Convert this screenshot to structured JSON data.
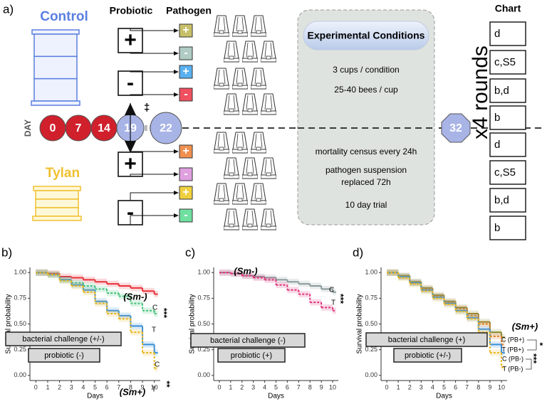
{
  "panel_a": {
    "label": "a)",
    "control": "Control",
    "tylan": "Tylan",
    "probiotic_header": "Probiotic",
    "pathogen_header": "Pathogen",
    "day_label": "DAY",
    "days": [
      "0",
      "7",
      "14",
      "19",
      "22",
      "32"
    ],
    "dagger": "‡",
    "probiotic_signs": [
      "+",
      "-",
      "+",
      "-"
    ],
    "pathogen_signs": [
      "+",
      "-",
      "+",
      "-",
      "+",
      "-",
      "+",
      "-"
    ],
    "conditions": {
      "title": "Experimental Conditions",
      "lines": [
        "3 cups / condition",
        "25-40 bees / cup",
        "mortality census every 24h",
        "pathogen suspension",
        "replaced 72h",
        "10 day trial"
      ]
    },
    "rounds": "x4 rounds",
    "chart_header": "Chart",
    "chart_cells": [
      "d",
      "c,S5",
      "b,d",
      "b",
      "d",
      "c,S5",
      "b,d",
      "b"
    ]
  },
  "chart_data": [
    {
      "type": "line",
      "panel": "b)",
      "xlabel": "Days",
      "ylabel": "Survival probability",
      "x": [
        0,
        1,
        2,
        3,
        4,
        5,
        6,
        7,
        8,
        9,
        10
      ],
      "xlim": [
        -0.5,
        10.5
      ],
      "xticks": [
        0,
        1,
        2,
        3,
        4,
        5,
        6,
        7,
        8,
        9,
        10
      ],
      "ylim": [
        -0.05,
        1.05
      ],
      "yticks": [
        {
          "value": 0,
          "label": "0.00"
        },
        {
          "value": 0.25,
          "label": "0.25"
        },
        {
          "value": 0.5,
          "label": "0.50"
        },
        {
          "value": 0.75,
          "label": "0.75"
        },
        {
          "value": 1,
          "label": "1.00"
        }
      ],
      "series": [
        {
          "name": "C",
          "color": "#e8303a",
          "dashed": false,
          "values": [
            1,
            0.99,
            0.96,
            0.95,
            0.93,
            0.91,
            0.89,
            0.87,
            0.85,
            0.82,
            0.79
          ]
        },
        {
          "name": "T",
          "color": "#45c07a",
          "dashed": true,
          "values": [
            1,
            0.98,
            0.93,
            0.9,
            0.87,
            0.84,
            0.8,
            0.77,
            0.7,
            0.63,
            0.6
          ]
        },
        {
          "name": "C",
          "color": "#3a8fd8",
          "dashed": false,
          "values": [
            1,
            0.98,
            0.93,
            0.88,
            0.83,
            0.72,
            0.63,
            0.58,
            0.48,
            0.3,
            0.22
          ]
        },
        {
          "name": "T",
          "color": "#e8b820",
          "dashed": true,
          "values": [
            1,
            0.98,
            0.92,
            0.87,
            0.81,
            0.7,
            0.6,
            0.55,
            0.42,
            0.22,
            0.07
          ]
        }
      ],
      "annotations": [
        "(Sm-)",
        "***",
        "(Sm+)",
        "**",
        "bacterial challenge (+/-)",
        "probiotic (-)"
      ]
    },
    {
      "type": "line",
      "panel": "c)",
      "xlabel": "Days",
      "ylabel": "Survival probability",
      "x": [
        0,
        1,
        2,
        3,
        4,
        5,
        6,
        7,
        8,
        9,
        10
      ],
      "xlim": [
        -0.5,
        10.5
      ],
      "xticks": [
        0,
        1,
        2,
        3,
        4,
        5,
        6,
        7,
        8,
        9,
        10
      ],
      "ylim": [
        -0.05,
        1.05
      ],
      "yticks": [
        {
          "value": 0,
          "label": "0.00"
        },
        {
          "value": 0.25,
          "label": "0.25"
        },
        {
          "value": 0.5,
          "label": "0.50"
        },
        {
          "value": 0.75,
          "label": "0.75"
        },
        {
          "value": 1,
          "label": "1.00"
        }
      ],
      "series": [
        {
          "name": "C",
          "color": "#8a9a9a",
          "dashed": false,
          "values": [
            1,
            0.99,
            0.97,
            0.96,
            0.95,
            0.93,
            0.91,
            0.89,
            0.87,
            0.84,
            0.81
          ]
        },
        {
          "name": "T",
          "color": "#e0307a",
          "dashed": true,
          "values": [
            1,
            0.99,
            0.97,
            0.95,
            0.93,
            0.88,
            0.83,
            0.79,
            0.71,
            0.66,
            0.63
          ]
        }
      ],
      "annotations": [
        "(Sm-)",
        "***",
        "bacterial challenge (-)",
        "probiotic (+)"
      ]
    },
    {
      "type": "line",
      "panel": "d)",
      "xlabel": "Days",
      "ylabel": "Survival probability",
      "x": [
        0,
        1,
        2,
        3,
        4,
        5,
        6,
        7,
        8,
        9,
        10
      ],
      "xlim": [
        -0.5,
        10.5
      ],
      "xticks": [
        0,
        1,
        2,
        3,
        4,
        5,
        6,
        7,
        8,
        9,
        10
      ],
      "ylim": [
        -0.05,
        1.05
      ],
      "yticks": [
        {
          "value": 0,
          "label": "0.00"
        },
        {
          "value": 0.25,
          "label": "0.25"
        },
        {
          "value": 0.5,
          "label": "0.50"
        },
        {
          "value": 0.75,
          "label": "0.75"
        },
        {
          "value": 1,
          "label": "1.00"
        }
      ],
      "series": [
        {
          "name": "C (PB+)",
          "color": "#8a8a30",
          "dashed": false,
          "values": [
            1,
            0.97,
            0.91,
            0.85,
            0.78,
            0.72,
            0.66,
            0.6,
            0.52,
            0.42,
            0.37
          ]
        },
        {
          "name": "T (PB+)",
          "color": "#e07a20",
          "dashed": true,
          "values": [
            1,
            0.96,
            0.9,
            0.84,
            0.77,
            0.71,
            0.65,
            0.58,
            0.5,
            0.38,
            0.3
          ]
        },
        {
          "name": "C (PB-)",
          "color": "#3a8fd8",
          "dashed": false,
          "values": [
            1,
            0.96,
            0.9,
            0.83,
            0.76,
            0.7,
            0.63,
            0.56,
            0.45,
            0.3,
            0.22
          ]
        },
        {
          "name": "T (PB-)",
          "color": "#e8b820",
          "dashed": true,
          "values": [
            1,
            0.95,
            0.89,
            0.82,
            0.75,
            0.69,
            0.62,
            0.55,
            0.42,
            0.22,
            0.08
          ]
        }
      ],
      "annotations": [
        "(Sm+)",
        "*",
        "***",
        "bacterial challenge (+)",
        "probiotic (+/-)"
      ]
    }
  ]
}
